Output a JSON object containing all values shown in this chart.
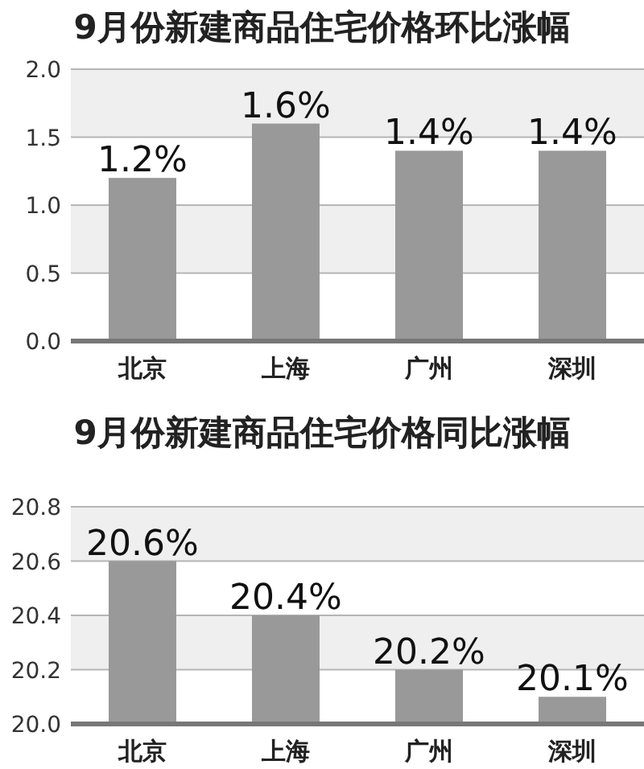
{
  "chart_data": [
    {
      "type": "bar",
      "title": "9月份新建商品住宅价格环比涨幅",
      "categories": [
        "北京",
        "上海",
        "广州",
        "深圳"
      ],
      "values": [
        1.2,
        1.6,
        1.4,
        1.4
      ],
      "value_labels": [
        "1.2%",
        "1.6%",
        "1.4%",
        "1.4%"
      ],
      "color": "#999999",
      "ylim": [
        0,
        2
      ],
      "yticks": [
        {
          "value": 0,
          "label": "0.0"
        },
        {
          "value": 0.5,
          "label": "0.5"
        },
        {
          "value": 1,
          "label": "1.0"
        },
        {
          "value": 1.5,
          "label": "1.5"
        },
        {
          "value": 2,
          "label": "2.0"
        }
      ],
      "grid": "y"
    },
    {
      "type": "bar",
      "title": "9月份新建商品住宅价格同比涨幅",
      "categories": [
        "北京",
        "上海",
        "广州",
        "深圳"
      ],
      "values": [
        20.6,
        20.4,
        20.2,
        20.1
      ],
      "value_labels": [
        "20.6%",
        "20.4%",
        "20.2%",
        "20.1%"
      ],
      "color": "#999999",
      "ylim": [
        20.0,
        20.8
      ],
      "yticks": [
        {
          "value": 20.0,
          "label": "20.0"
        },
        {
          "value": 20.2,
          "label": "20.2"
        },
        {
          "value": 20.4,
          "label": "20.4"
        },
        {
          "value": 20.6,
          "label": "20.6"
        },
        {
          "value": 20.8,
          "label": "20.8"
        }
      ],
      "grid": "y"
    }
  ]
}
